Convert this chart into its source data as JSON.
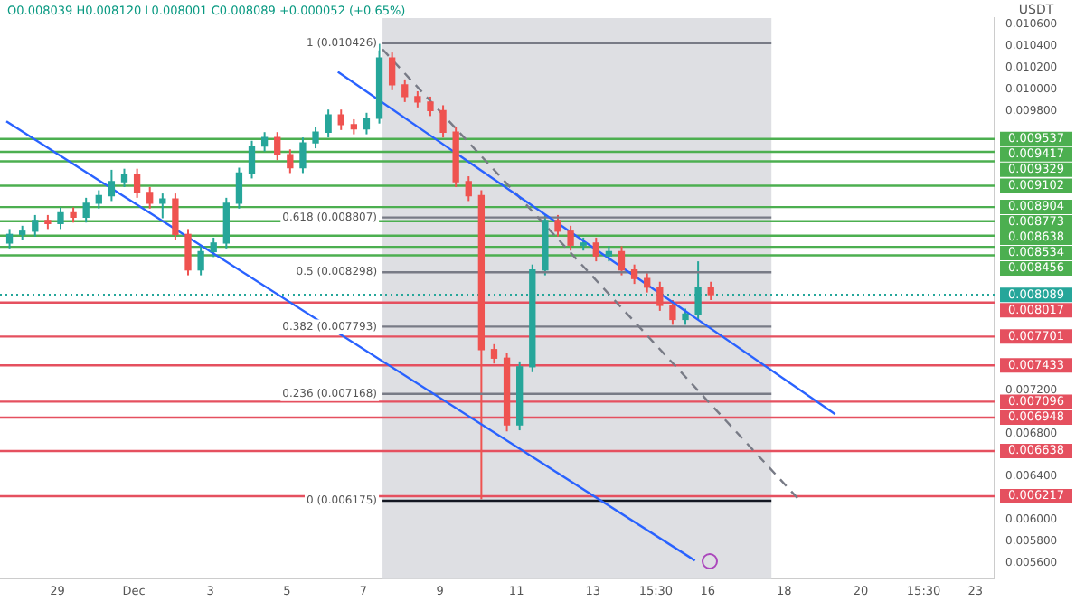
{
  "chart_data": {
    "type": "candlestick",
    "title": "O0.008039 H0.008120 L0.008001 C0.008089 +0.000052 (+0.65%)",
    "ylabel": "USDT",
    "x": [
      "--11-27T18:00",
      "--11-28T02:00",
      "--11-28T10:00",
      "--11-28T18:00",
      "--11-29T02:00",
      "--11-29T10:00",
      "--11-29T18:00",
      "--11-30T02:00",
      "--11-30T10:00",
      "--11-30T18:00",
      "--12-01T02:00",
      "--12-01T10:00",
      "--12-01T18:00",
      "--12-02T02:00",
      "--12-02T10:00",
      "--12-02T18:00",
      "--12-03T02:00",
      "--12-03T10:00",
      "--12-03T18:00",
      "--12-04T02:00",
      "--12-04T10:00",
      "--12-04T18:00",
      "--12-05T02:00",
      "--12-05T10:00",
      "--12-05T18:00",
      "--12-06T02:00",
      "--12-06T10:00",
      "--12-06T18:00",
      "--12-07T02:00",
      "--12-07T10:00",
      "--12-07T18:00",
      "--12-08T02:00",
      "--12-08T10:00",
      "--12-08T18:00",
      "--12-09T02:00",
      "--12-09T10:00",
      "--12-09T18:00",
      "--12-10T02:00",
      "--12-10T10:00",
      "--12-10T18:00",
      "--12-11T02:00",
      "--12-11T10:00",
      "--12-11T18:00",
      "--12-12T02:00",
      "--12-12T10:00",
      "--12-12T18:00",
      "--12-13T02:00",
      "--12-13T10:00",
      "--12-13T18:00",
      "--12-14T02:00",
      "--12-14T10:00",
      "--12-14T18:00",
      "--12-15T02:00",
      "--12-15T10:00",
      "--12-15T18:00",
      "--12-16T02:00"
    ],
    "ohlc": [
      [
        0.00857,
        0.0087,
        0.00852,
        0.00865
      ],
      [
        0.00865,
        0.00873,
        0.0086,
        0.00868
      ],
      [
        0.00868,
        0.00883,
        0.00863,
        0.00878
      ],
      [
        0.00878,
        0.00883,
        0.0087,
        0.00875
      ],
      [
        0.00875,
        0.0089,
        0.0087,
        0.00885
      ],
      [
        0.00885,
        0.0089,
        0.00876,
        0.00881
      ],
      [
        0.00881,
        0.00899,
        0.00876,
        0.00894
      ],
      [
        0.00894,
        0.00906,
        0.00889,
        0.00901
      ],
      [
        0.00901,
        0.00925,
        0.00896,
        0.00914
      ],
      [
        0.00914,
        0.00926,
        0.00909,
        0.00921
      ],
      [
        0.00921,
        0.00926,
        0.00899,
        0.00904
      ],
      [
        0.00904,
        0.00909,
        0.00889,
        0.00894
      ],
      [
        0.00894,
        0.00903,
        0.0088,
        0.00898
      ],
      [
        0.00898,
        0.00903,
        0.0086,
        0.00865
      ],
      [
        0.00865,
        0.0087,
        0.00827,
        0.00832
      ],
      [
        0.00832,
        0.00854,
        0.00827,
        0.00849
      ],
      [
        0.00849,
        0.00862,
        0.00844,
        0.00857
      ],
      [
        0.00857,
        0.00899,
        0.00852,
        0.00894
      ],
      [
        0.00894,
        0.00927,
        0.00889,
        0.00922
      ],
      [
        0.00922,
        0.00952,
        0.00917,
        0.00947
      ],
      [
        0.00947,
        0.0096,
        0.00942,
        0.00955
      ],
      [
        0.00955,
        0.0096,
        0.00934,
        0.00939
      ],
      [
        0.00939,
        0.00944,
        0.00922,
        0.00927
      ],
      [
        0.00927,
        0.00955,
        0.00922,
        0.0095
      ],
      [
        0.0095,
        0.00965,
        0.00945,
        0.0096
      ],
      [
        0.0096,
        0.00981,
        0.00955,
        0.00976
      ],
      [
        0.00976,
        0.00981,
        0.00962,
        0.00967
      ],
      [
        0.00967,
        0.00972,
        0.00958,
        0.00963
      ],
      [
        0.00963,
        0.00978,
        0.00958,
        0.00973
      ],
      [
        0.00973,
        0.01042,
        0.00968,
        0.01029
      ],
      [
        0.01029,
        0.01034,
        0.00999,
        0.01004
      ],
      [
        0.01004,
        0.01009,
        0.00988,
        0.00993
      ],
      [
        0.00993,
        0.00998,
        0.00983,
        0.00988
      ],
      [
        0.00988,
        0.00993,
        0.00975,
        0.0098
      ],
      [
        0.0098,
        0.00985,
        0.00955,
        0.0096
      ],
      [
        0.0096,
        0.00965,
        0.00909,
        0.00914
      ],
      [
        0.00914,
        0.00919,
        0.00896,
        0.00901
      ],
      [
        0.00901,
        0.00906,
        0.00619,
        0.00758
      ],
      [
        0.00758,
        0.00763,
        0.00745,
        0.0075
      ],
      [
        0.0075,
        0.00755,
        0.00682,
        0.00688
      ],
      [
        0.00688,
        0.00747,
        0.00683,
        0.00742
      ],
      [
        0.00742,
        0.00837,
        0.00737,
        0.00832
      ],
      [
        0.00832,
        0.00883,
        0.00827,
        0.00878
      ],
      [
        0.00878,
        0.00883,
        0.00863,
        0.00868
      ],
      [
        0.00868,
        0.00873,
        0.0085,
        0.00855
      ],
      [
        0.00855,
        0.00862,
        0.0085,
        0.00857
      ],
      [
        0.00857,
        0.00862,
        0.0084,
        0.00845
      ],
      [
        0.00845,
        0.00854,
        0.0084,
        0.00849
      ],
      [
        0.00849,
        0.00854,
        0.00827,
        0.00832
      ],
      [
        0.00832,
        0.00837,
        0.00819,
        0.00824
      ],
      [
        0.00824,
        0.00829,
        0.00811,
        0.00816
      ],
      [
        0.00816,
        0.00821,
        0.00794,
        0.00799
      ],
      [
        0.00799,
        0.00804,
        0.00781,
        0.00786
      ],
      [
        0.00786,
        0.00796,
        0.00781,
        0.00791
      ],
      [
        0.00791,
        0.0084,
        0.00786,
        0.00816
      ],
      [
        0.00816,
        0.00821,
        0.00804,
        0.00809
      ]
    ],
    "series": [
      {
        "type": "line",
        "x": [
          "--11-27T16:00",
          "--12-15T16:00"
        ],
        "values": [
          0.0097,
          0.00562
        ],
        "color": "#2962ff"
      },
      {
        "type": "line",
        "x": [
          "--12-06T08:00",
          "--12-19T08:00"
        ],
        "values": [
          0.01016,
          0.00698
        ],
        "color": "#2962ff"
      },
      {
        "type": "line",
        "x": [
          "--12-07T12:00",
          "--12-18T09:00"
        ],
        "values": [
          0.01037,
          0.00619
        ],
        "color": "#787b86",
        "line_style": "dashed"
      },
      {
        "type": "line",
        "x": [
          "--12-07T12:00",
          "--12-17T16:00"
        ],
        "values": [
          0.010426,
          0.010426
        ],
        "color": "#787b86"
      },
      {
        "type": "line",
        "x": [
          "--12-07T12:00",
          "--12-17T16:00"
        ],
        "values": [
          0.008807,
          0.008807
        ],
        "color": "#787b86"
      },
      {
        "type": "line",
        "x": [
          "--12-07T12:00",
          "--12-17T16:00"
        ],
        "values": [
          0.008298,
          0.008298
        ],
        "color": "#787b86"
      },
      {
        "type": "line",
        "x": [
          "--12-07T12:00",
          "--12-17T16:00"
        ],
        "values": [
          0.007793,
          0.007793
        ],
        "color": "#787b86"
      },
      {
        "type": "line",
        "x": [
          "--12-07T12:00",
          "--12-17T16:00"
        ],
        "values": [
          0.007168,
          0.007168
        ],
        "color": "#787b86"
      },
      {
        "type": "line",
        "x": [
          "--12-07T12:00",
          "--12-17T16:00"
        ],
        "values": [
          0.006175,
          0.006175
        ],
        "color": "#131722"
      }
    ],
    "annotations": [
      {
        "text": "1 (0.010426)",
        "x": "--12-07T12:00",
        "y": 0.010426
      },
      {
        "text": "0.618 (0.008807)",
        "x": "--12-07T12:00",
        "y": 0.008807
      },
      {
        "text": "0.5 (0.008298)",
        "x": "--12-07T12:00",
        "y": 0.008298
      },
      {
        "text": "0.382 (0.007793)",
        "x": "--12-07T12:00",
        "y": 0.007793
      },
      {
        "text": "0.236 (0.007168)",
        "x": "--12-07T12:00",
        "y": 0.007168
      },
      {
        "text": "0 (0.006175)",
        "x": "--12-07T12:00",
        "y": 0.006175
      }
    ],
    "bands": [
      {
        "axis": "x",
        "from": "--12-07T12:00",
        "to": "--12-17T16:00",
        "color": "#dedfe3"
      }
    ],
    "ref_lines": [
      {
        "axis": "y",
        "value": 0.009537,
        "label": "0.009537",
        "color": "#4caf50"
      },
      {
        "axis": "y",
        "value": 0.009417,
        "label": "0.009417",
        "color": "#4caf50"
      },
      {
        "axis": "y",
        "value": 0.009329,
        "label": "0.009329",
        "color": "#4caf50"
      },
      {
        "axis": "y",
        "value": 0.009102,
        "label": "0.009102",
        "color": "#4caf50"
      },
      {
        "axis": "y",
        "value": 0.008904,
        "label": "0.008904",
        "color": "#4caf50"
      },
      {
        "axis": "y",
        "value": 0.008773,
        "label": "0.008773",
        "color": "#4caf50"
      },
      {
        "axis": "y",
        "value": 0.008638,
        "label": "0.008638",
        "color": "#4caf50"
      },
      {
        "axis": "y",
        "value": 0.008534,
        "label": "0.008534",
        "color": "#4caf50"
      },
      {
        "axis": "y",
        "value": 0.008456,
        "label": "0.008456",
        "color": "#4caf50"
      },
      {
        "axis": "y",
        "value": 0.008089,
        "label": "0.008089",
        "color": "#26a69a",
        "line_style": "dotted"
      },
      {
        "axis": "y",
        "value": 0.008017,
        "label": "0.008017",
        "color": "#e5505f"
      },
      {
        "axis": "y",
        "value": 0.007701,
        "label": "0.007701",
        "color": "#e5505f"
      },
      {
        "axis": "y",
        "value": 0.007433,
        "label": "0.007433",
        "color": "#e5505f"
      },
      {
        "axis": "y",
        "value": 0.007096,
        "label": "0.007096",
        "color": "#e5505f"
      },
      {
        "axis": "y",
        "value": 0.006948,
        "label": "0.006948",
        "color": "#e5505f"
      },
      {
        "axis": "y",
        "value": 0.006638,
        "label": "0.006638",
        "color": "#e5505f"
      },
      {
        "axis": "y",
        "value": 0.006217,
        "label": "0.006217",
        "color": "#e5505f"
      }
    ],
    "xlim": [
      "--11-27T12:00",
      "--12-23T12:00"
    ],
    "xticks": [
      {
        "value": "--11-29",
        "label": "29"
      },
      {
        "value": "--12-01",
        "label": "Dec"
      },
      {
        "value": "--12-03",
        "label": "3"
      },
      {
        "value": "--12-05",
        "label": "5"
      },
      {
        "value": "--12-07",
        "label": "7"
      },
      {
        "value": "--12-09",
        "label": "9"
      },
      {
        "value": "--12-11",
        "label": "11"
      },
      {
        "value": "--12-13",
        "label": "13"
      },
      {
        "value": "--12-14T15:30",
        "label": "15:30"
      },
      {
        "value": "--12-16",
        "label": "16"
      },
      {
        "value": "--12-18",
        "label": "18"
      },
      {
        "value": "--12-20",
        "label": "20"
      },
      {
        "value": "--12-21T15:30",
        "label": "15:30"
      },
      {
        "value": "--12-23",
        "label": "23"
      }
    ],
    "ylim": [
      0.00545,
      0.01066
    ],
    "yticks": [
      {
        "value": 0.0106,
        "label": "0.010600"
      },
      {
        "value": 0.0104,
        "label": "0.010400"
      },
      {
        "value": 0.0102,
        "label": "0.010200"
      },
      {
        "value": 0.01,
        "label": "0.010000"
      },
      {
        "value": 0.0098,
        "label": "0.009800"
      },
      {
        "value": 0.0072,
        "label": "0.007200"
      },
      {
        "value": 0.0068,
        "label": "0.006800"
      },
      {
        "value": 0.0064,
        "label": "0.006400"
      },
      {
        "value": 0.006,
        "label": "0.006000"
      },
      {
        "value": 0.0058,
        "label": "0.005800"
      },
      {
        "value": 0.0056,
        "label": "0.005600"
      }
    ],
    "grid": false,
    "legend": false
  }
}
